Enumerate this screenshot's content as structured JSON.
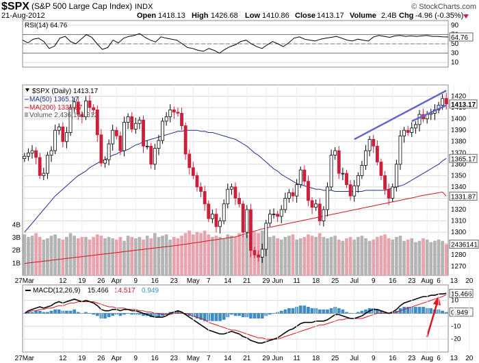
{
  "header": {
    "symbol": "$SPX",
    "name": "(S&P 500 Large Cap Index)",
    "exchange": "INDX",
    "source": "© StockCharts.com",
    "date": "21-Aug-2012",
    "quote": {
      "open_label": "Open",
      "open": "1418.13",
      "high_label": "High",
      "high": "1426.68",
      "low_label": "Low",
      "low": "1410.86",
      "close_label": "Close",
      "close": "1413.17",
      "volume_label": "Volume",
      "volume": "2.4B",
      "chg_label": "Chg",
      "chg": "-4.96 (-0.35%)"
    }
  },
  "colors": {
    "up": "#000000",
    "down": "#cc1f3a",
    "ma50": "#1c2c94",
    "ma200": "#d2141e",
    "vol_up": "#b4b4b4",
    "vol_down": "#e8a4ae",
    "hist": "#3c8cc8",
    "trend": "#6464cc",
    "arrow": "#e0101e",
    "grid": "#d8d8d8",
    "rsi_line": "#000000"
  },
  "chart_data": [
    {
      "panel": "rsi",
      "type": "line",
      "legend": "RSI(14) 64.76",
      "current_value": "64.76",
      "ylim": [
        0,
        100
      ],
      "yticks": [
        "90",
        "70",
        "50",
        "30",
        "10"
      ],
      "reference_lines": [
        70,
        50,
        30
      ],
      "values": [
        58,
        52,
        60,
        62,
        55,
        40,
        45,
        62,
        66,
        55,
        50,
        60,
        70,
        64,
        50,
        38,
        42,
        58,
        52,
        62,
        66,
        68,
        72,
        64,
        58,
        54,
        65,
        62,
        60,
        58,
        50,
        42,
        40,
        36,
        34,
        40,
        36,
        30,
        38,
        44,
        48,
        55,
        58,
        50,
        44,
        40,
        48,
        55,
        50,
        44,
        52,
        62,
        65,
        60,
        58,
        56,
        60,
        62,
        64,
        66,
        62,
        58,
        56,
        60,
        58,
        56,
        65,
        68,
        66,
        64,
        67,
        68,
        66,
        67,
        66,
        67,
        68,
        66,
        66,
        65,
        64.76
      ]
    },
    {
      "panel": "price",
      "type": "candlestick",
      "legend": [
        "$SPX (Daily) 1413.17",
        "MA(50) 1365.17",
        "MA(200) 1331.87",
        "Volume 2,436,141,312"
      ],
      "ylim": [
        1262,
        1430
      ],
      "yticks": [
        "1420",
        "1410",
        "1400",
        "1390",
        "1380",
        "1370",
        "1360",
        "1350",
        "1340",
        "1330",
        "1320",
        "1310",
        "1300",
        "1290",
        "1280",
        "1270"
      ],
      "last_close": "1413.17",
      "ma50_last": "1365.17",
      "ma200_last": "1331.87",
      "volume_yticks": [
        "4B",
        "3B",
        "2B",
        "1B"
      ],
      "volume_ylim": [
        0,
        4.5
      ],
      "volume_last": "2436141",
      "close": [
        1367,
        1370,
        1372,
        1366,
        1350,
        1352,
        1368,
        1372,
        1390,
        1393,
        1380,
        1388,
        1410,
        1415,
        1404,
        1402,
        1416,
        1410,
        1408,
        1386,
        1361,
        1364,
        1378,
        1390,
        1385,
        1372,
        1397,
        1402,
        1391,
        1396,
        1399,
        1376,
        1376,
        1360,
        1374,
        1381,
        1398,
        1402,
        1408,
        1406,
        1405,
        1394,
        1369,
        1357,
        1350,
        1340,
        1336,
        1325,
        1312,
        1316,
        1305,
        1310,
        1325,
        1338,
        1340,
        1330,
        1325,
        1300,
        1320,
        1284,
        1280,
        1278,
        1285,
        1308,
        1316,
        1316,
        1314,
        1320,
        1330,
        1335,
        1332,
        1342,
        1355,
        1345,
        1328,
        1322,
        1325,
        1310,
        1320,
        1340,
        1368,
        1372,
        1352,
        1352,
        1342,
        1332,
        1341,
        1350,
        1359,
        1372,
        1382,
        1376,
        1362,
        1350,
        1338,
        1330,
        1340,
        1360,
        1385,
        1390,
        1388,
        1392,
        1395,
        1404,
        1400,
        1404,
        1405,
        1408,
        1412,
        1418,
        1413.17
      ],
      "open": [
        1365,
        1367,
        1370,
        1372,
        1366,
        1350,
        1352,
        1368,
        1372,
        1390,
        1393,
        1380,
        1388,
        1410,
        1415,
        1404,
        1402,
        1416,
        1410,
        1408,
        1386,
        1361,
        1364,
        1378,
        1390,
        1385,
        1372,
        1397,
        1402,
        1391,
        1396,
        1399,
        1376,
        1376,
        1360,
        1374,
        1381,
        1398,
        1402,
        1408,
        1406,
        1405,
        1394,
        1369,
        1357,
        1350,
        1340,
        1336,
        1325,
        1312,
        1316,
        1305,
        1310,
        1325,
        1338,
        1340,
        1330,
        1325,
        1300,
        1320,
        1284,
        1280,
        1278,
        1285,
        1308,
        1316,
        1316,
        1314,
        1320,
        1330,
        1335,
        1332,
        1342,
        1355,
        1345,
        1328,
        1322,
        1325,
        1310,
        1320,
        1340,
        1368,
        1372,
        1352,
        1352,
        1342,
        1332,
        1341,
        1350,
        1359,
        1372,
        1382,
        1376,
        1362,
        1350,
        1338,
        1330,
        1340,
        1360,
        1385,
        1390,
        1388,
        1392,
        1395,
        1404,
        1400,
        1404,
        1405,
        1408,
        1412,
        1418.13
      ],
      "ma50": [
        1300,
        1304,
        1308,
        1312,
        1316,
        1320,
        1324,
        1328,
        1332,
        1335,
        1338,
        1341,
        1344,
        1347,
        1350,
        1352,
        1354,
        1357,
        1359,
        1361,
        1363,
        1364,
        1366,
        1368,
        1369,
        1371,
        1372,
        1373,
        1375,
        1377,
        1378,
        1380,
        1381,
        1382,
        1383,
        1384,
        1385,
        1386,
        1387,
        1388,
        1389,
        1389,
        1390,
        1390,
        1390,
        1390,
        1389,
        1389,
        1388,
        1388,
        1387,
        1386,
        1385,
        1384,
        1383,
        1382,
        1380,
        1378,
        1376,
        1373,
        1370,
        1368,
        1365,
        1362,
        1359,
        1356,
        1354,
        1351,
        1349,
        1347,
        1345,
        1343,
        1342,
        1341,
        1340,
        1339,
        1338,
        1338,
        1337,
        1337,
        1337,
        1336,
        1336,
        1336,
        1336,
        1336,
        1336,
        1336,
        1336,
        1337,
        1337,
        1337,
        1337,
        1337,
        1337,
        1338,
        1339,
        1340,
        1341,
        1342,
        1344,
        1346,
        1348,
        1350,
        1352,
        1354,
        1356,
        1358,
        1360,
        1363,
        1365.17
      ],
      "ma200": [
        1272.5,
        1272.9,
        1273.3,
        1273.7,
        1274.1,
        1274.5,
        1274.9,
        1275.3,
        1275.7,
        1276.1,
        1276.5,
        1276.9,
        1277.3,
        1277.7,
        1278.1,
        1278.5,
        1278.9,
        1279.3,
        1279.7,
        1280.1,
        1280.5,
        1280.9,
        1281.3,
        1281.7,
        1282.1,
        1282.5,
        1282.9,
        1283.3,
        1283.7,
        1284.1,
        1284.5,
        1284.9,
        1285.3,
        1285.7,
        1286.1,
        1286.5,
        1286.9,
        1287.3,
        1287.7,
        1288.1,
        1288.5,
        1289.0,
        1289.5,
        1290.0,
        1290.5,
        1291.0,
        1291.5,
        1292.0,
        1292.5,
        1293.0,
        1293.5,
        1294.0,
        1294.5,
        1295.0,
        1295.5,
        1296.0,
        1297.0,
        1298.0,
        1299.0,
        1300.0,
        1301.0,
        1302.0,
        1303.0,
        1303.7,
        1304.4,
        1305.1,
        1305.8,
        1306.5,
        1307.2,
        1307.9,
        1308.6,
        1309.3,
        1310.0,
        1310.7,
        1311.4,
        1312.1,
        1312.8,
        1313.5,
        1314.2,
        1314.9,
        1315.6,
        1316.3,
        1317.0,
        1317.7,
        1318.4,
        1319.1,
        1319.8,
        1320.5,
        1321.2,
        1321.9,
        1322.6,
        1323.3,
        1324.0,
        1324.7,
        1325.4,
        1326.1,
        1326.8,
        1327.5,
        1328.2,
        1328.9,
        1329.6,
        1330.3,
        1331.0,
        1331.87,
        1332.5,
        1333.1,
        1333.7,
        1334.3,
        1334.9,
        1335.5,
        1331.87
      ],
      "volume": [
        3.2,
        3.0,
        3.1,
        3.3,
        3.0,
        2.8,
        2.9,
        3.1,
        3.2,
        2.9,
        2.8,
        3.0,
        3.3,
        3.1,
        2.9,
        3.0,
        3.0,
        2.8,
        3.0,
        3.2,
        3.1,
        2.9,
        3.0,
        2.9,
        2.8,
        3.0,
        2.7,
        3.1,
        3.0,
        2.9,
        3.0,
        2.8,
        3.1,
        2.9,
        3.3,
        3.0,
        3.1,
        3.2,
        2.8,
        3.0,
        2.9,
        3.1,
        3.3,
        3.5,
        3.2,
        3.4,
        3.3,
        3.5,
        3.2,
        3.0,
        3.1,
        3.0,
        2.9,
        3.2,
        3.1,
        3.0,
        3.3,
        3.1,
        3.2,
        3.6,
        3.4,
        3.3,
        3.5,
        3.2,
        3.0,
        3.1,
        2.9,
        2.8,
        3.0,
        3.1,
        3.2,
        2.8,
        2.9,
        3.0,
        3.2,
        3.1,
        3.0,
        3.3,
        3.0,
        2.9,
        3.0,
        3.1,
        2.8,
        2.7,
        2.9,
        3.0,
        2.8,
        3.0,
        3.1,
        2.9,
        2.7,
        2.8,
        3.0,
        3.1,
        3.2,
        2.9,
        2.8,
        3.0,
        3.1,
        2.7,
        2.8,
        2.9,
        2.6,
        2.7,
        2.9,
        2.8,
        2.6,
        2.7,
        2.8,
        2.7,
        2.436
      ],
      "trendlines": [
        {
          "from": [
            86,
            1382
          ],
          "to": [
            110,
            1425
          ]
        },
        {
          "from": [
            101,
            1398
          ],
          "to": [
            110,
            1412
          ]
        }
      ]
    },
    {
      "panel": "macd",
      "type": "line",
      "legend": "MACD(12,26,9)",
      "values_label": [
        "15.466",
        "14.517",
        "0.949"
      ],
      "ylim": [
        -30,
        22
      ],
      "yticks": [
        "10",
        "0",
        "-10",
        "-20"
      ],
      "right_labels": [
        "15.466",
        "0.949"
      ],
      "macd": [
        0,
        2,
        3,
        4,
        5,
        4,
        5,
        6,
        8,
        9,
        8,
        9,
        10,
        11,
        10,
        9,
        10,
        9,
        8,
        6,
        3,
        2,
        2,
        3,
        3,
        2,
        3,
        3,
        2,
        2,
        1,
        0,
        -1,
        -2,
        -3,
        -3,
        -3,
        -2,
        0,
        1,
        2,
        1,
        -1,
        -3,
        -5,
        -7,
        -9,
        -11,
        -13,
        -14,
        -15,
        -16,
        -16,
        -15,
        -14,
        -15,
        -16,
        -18,
        -19,
        -21,
        -22,
        -23,
        -23,
        -22,
        -21,
        -20,
        -19,
        -17,
        -15,
        -13,
        -12,
        -10,
        -8,
        -7,
        -7,
        -7,
        -6,
        -6,
        -6,
        -5,
        -3,
        -1,
        -1,
        -2,
        -3,
        -4,
        -4,
        -3,
        -2,
        0,
        2,
        3,
        3,
        2,
        1,
        0,
        1,
        3,
        6,
        8,
        9,
        10,
        11,
        12,
        13,
        13,
        14,
        14,
        15,
        15,
        15.466
      ],
      "signal": [
        0,
        1,
        2,
        2,
        3,
        3,
        4,
        4,
        5,
        6,
        6,
        7,
        8,
        8,
        9,
        9,
        9,
        9,
        9,
        8,
        7,
        6,
        5,
        5,
        4,
        4,
        4,
        3,
        3,
        3,
        2,
        2,
        1,
        1,
        0,
        0,
        -1,
        -1,
        -1,
        0,
        0,
        0,
        0,
        -1,
        -2,
        -3,
        -4,
        -5,
        -7,
        -8,
        -9,
        -10,
        -11,
        -12,
        -13,
        -13,
        -14,
        -15,
        -16,
        -17,
        -18,
        -19,
        -19,
        -20,
        -20,
        -20,
        -20,
        -19,
        -18,
        -17,
        -16,
        -15,
        -14,
        -13,
        -12,
        -11,
        -10,
        -9,
        -9,
        -8,
        -7,
        -6,
        -5,
        -5,
        -4,
        -4,
        -4,
        -4,
        -4,
        -3,
        -2,
        -1,
        0,
        0,
        0,
        0,
        0,
        1,
        2,
        3,
        4,
        5,
        6,
        7,
        8,
        9,
        10,
        11,
        12,
        13,
        14.517
      ],
      "annotation": "red up arrow"
    }
  ],
  "x_axis": {
    "labels": [
      {
        "i": 0,
        "text": "27Mar"
      },
      {
        "i": 10,
        "text": "12"
      },
      {
        "i": 15,
        "text": "19"
      },
      {
        "i": 20,
        "text": "26"
      },
      {
        "i": 24,
        "text": "Apr"
      },
      {
        "i": 29,
        "text": "9"
      },
      {
        "i": 34,
        "text": "16"
      },
      {
        "i": 39,
        "text": "23"
      },
      {
        "i": 44,
        "text": "May"
      },
      {
        "i": 48,
        "text": "7"
      },
      {
        "i": 53,
        "text": "14"
      },
      {
        "i": 58,
        "text": "21"
      },
      {
        "i": 63,
        "text": "29"
      },
      {
        "i": 66,
        "text": "Jun"
      },
      {
        "i": 71,
        "text": "11"
      },
      {
        "i": 76,
        "text": "18"
      },
      {
        "i": 81,
        "text": "25"
      },
      {
        "i": 86,
        "text": "Jul"
      },
      {
        "i": 91,
        "text": "9"
      },
      {
        "i": 96,
        "text": "16"
      },
      {
        "i": 101,
        "text": "23"
      },
      {
        "i": 105,
        "text": "Aug"
      },
      {
        "i": 108,
        "text": "6"
      },
      {
        "i": 112,
        "text": "13"
      },
      {
        "i": 116,
        "text": "20"
      }
    ]
  }
}
